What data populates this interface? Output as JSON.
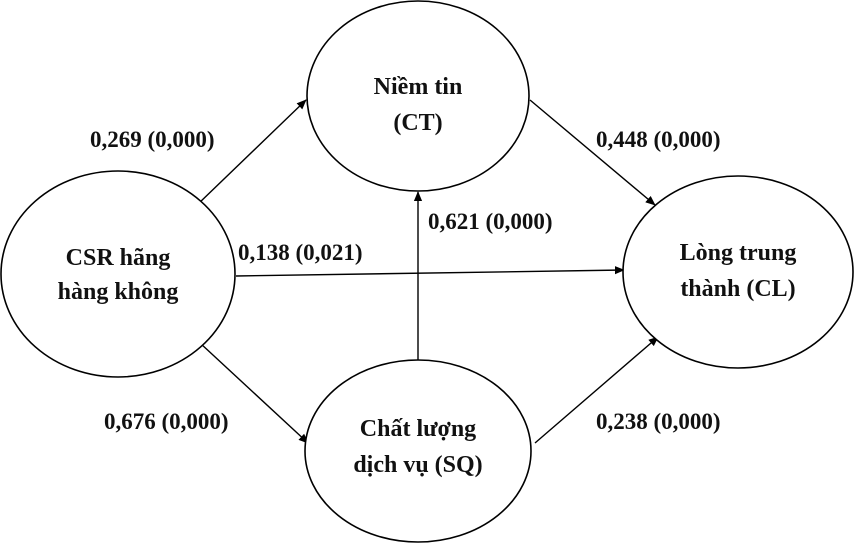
{
  "nodes": {
    "csr": {
      "line1": "CSR hãng",
      "line2": "hàng không"
    },
    "ct": {
      "line1": "Niềm tin",
      "line2": "(CT)"
    },
    "sq": {
      "line1": "Chất lượng",
      "line2": "dịch vụ (SQ)"
    },
    "cl": {
      "line1": "Lòng trung",
      "line2": "thành (CL)"
    }
  },
  "edges": {
    "csr_ct": {
      "label": "0,269 (0,000)"
    },
    "csr_cl": {
      "label": "0,138 (0,021)"
    },
    "csr_sq": {
      "label": "0,676 (0,000)"
    },
    "sq_ct": {
      "label": "0,621 (0,000)"
    },
    "ct_cl": {
      "label": "0,448 (0,000)"
    },
    "sq_cl": {
      "label": "0,238 (0,000)"
    }
  }
}
